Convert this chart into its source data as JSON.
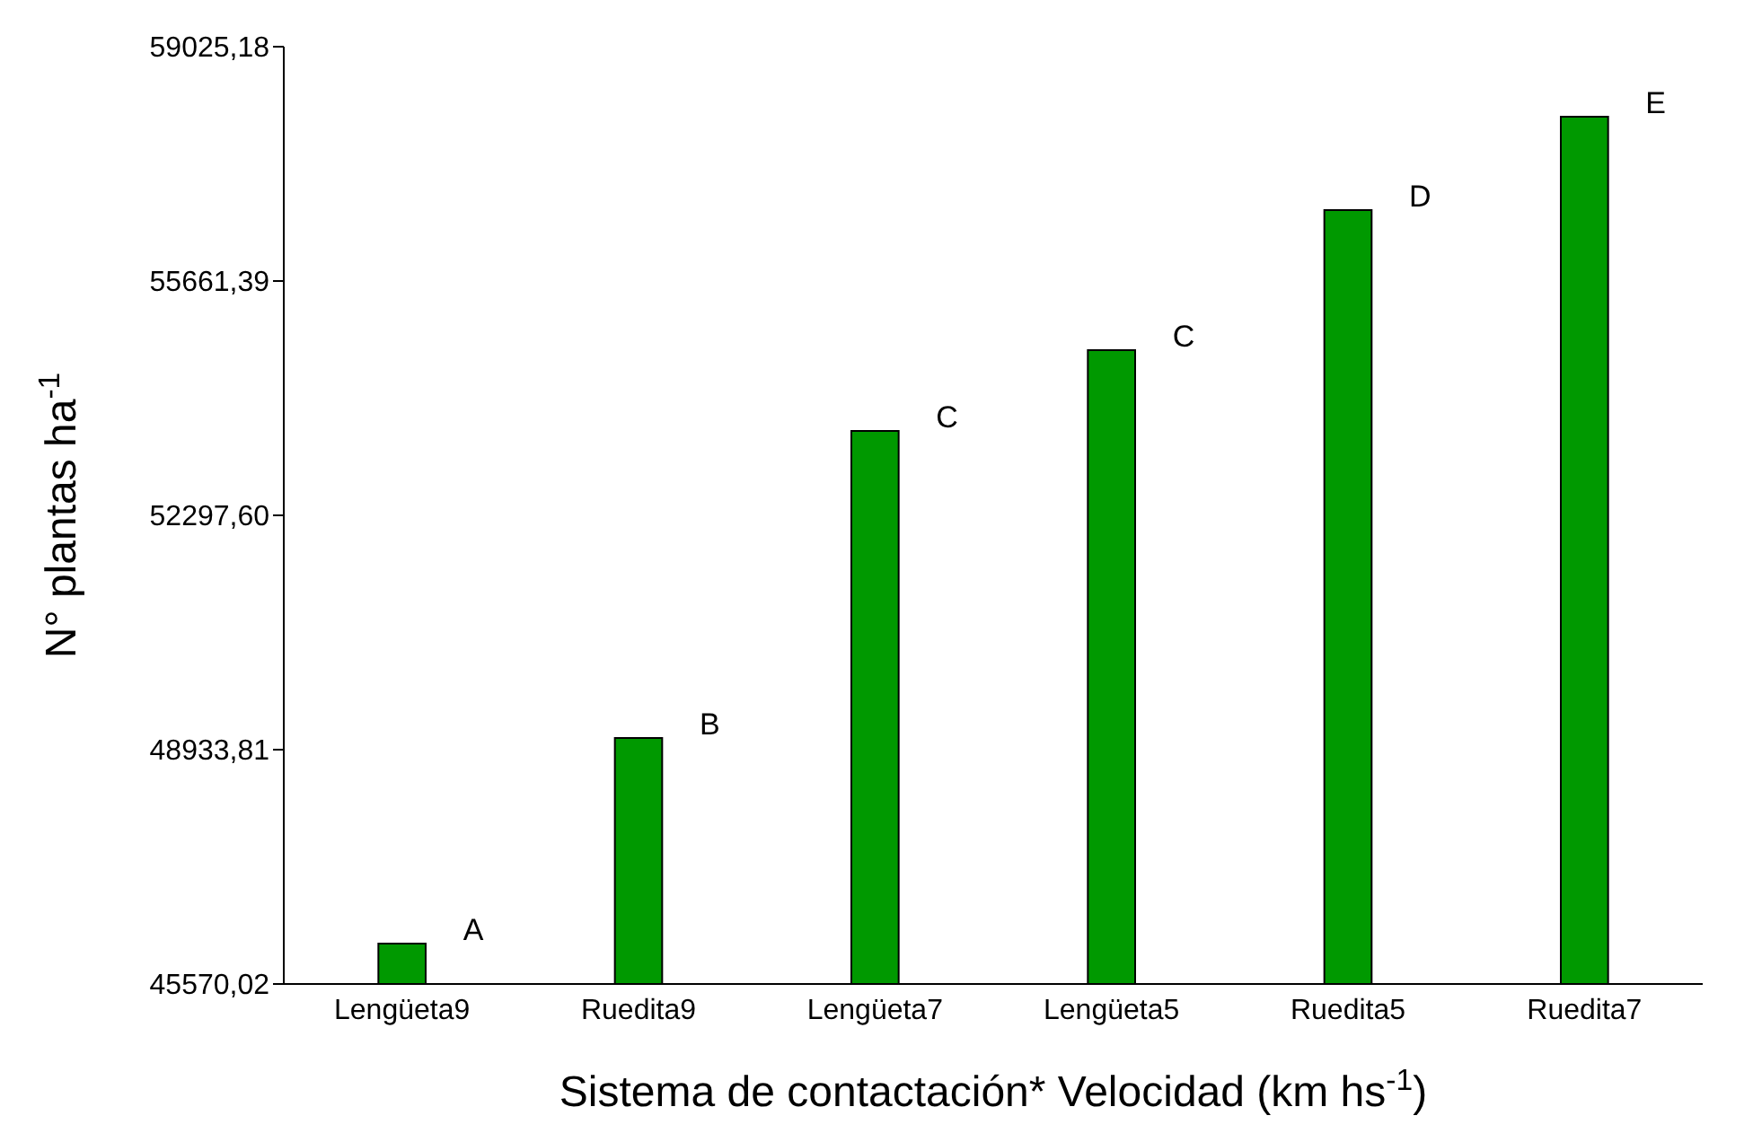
{
  "chart_data": {
    "type": "bar",
    "xlabel": "Sistema de contactación* Velocidad (km hs$^{-1}$)",
    "ylabel": "N° plantas ha$^{-1}$",
    "categories": [
      "Lengüeta9",
      "Ruedita9",
      "Lengüeta7",
      "Lengüeta5",
      "Ruedita5",
      "Ruedita7"
    ],
    "values": [
      46150,
      49100,
      53510,
      54670,
      56680,
      58020
    ],
    "color": "#009900",
    "ylim": [
      45570.02,
      59025.18
    ],
    "yticks": [
      {
        "value": 45570.02,
        "label": "45570,02"
      },
      {
        "value": 48933.81,
        "label": "48933,81"
      },
      {
        "value": 52297.6,
        "label": "52297,60"
      },
      {
        "value": 55661.39,
        "label": "55661,39"
      },
      {
        "value": 59025.18,
        "label": "59025,18"
      }
    ],
    "grid": false,
    "legend": false,
    "annotations": [
      {
        "text": "A",
        "x": "Lengüeta9",
        "y": 46150
      },
      {
        "text": "B",
        "x": "Ruedita9",
        "y": 49100
      },
      {
        "text": "C",
        "x": "Lengüeta7",
        "y": 53510
      },
      {
        "text": "C",
        "x": "Lengüeta5",
        "y": 54670
      },
      {
        "text": "D",
        "x": "Ruedita5",
        "y": 56680
      },
      {
        "text": "E",
        "x": "Ruedita7",
        "y": 58020
      }
    ]
  }
}
